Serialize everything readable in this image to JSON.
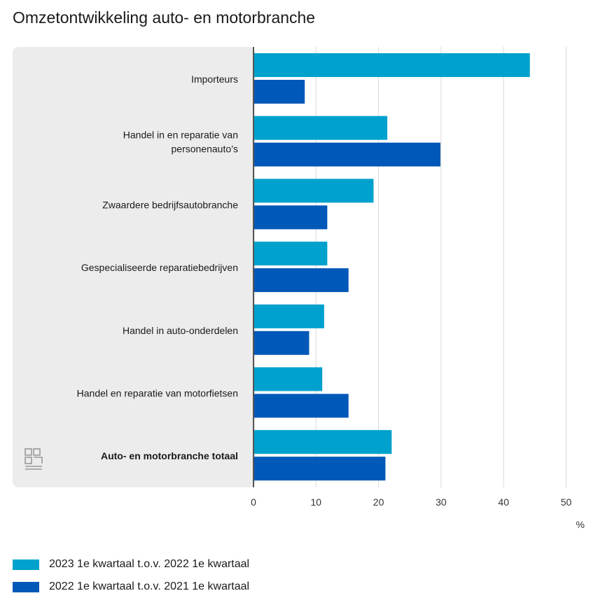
{
  "chart_data": {
    "type": "bar",
    "orientation": "horizontal",
    "title": "Omzetontwikkeling auto- en motorbranche",
    "categories": [
      [
        "Importeurs"
      ],
      [
        "Handel in en reparatie van",
        "personenauto’s"
      ],
      [
        "Zwaardere bedrijfsautobranche"
      ],
      [
        "Gespecialiseerde reparatiebedrijven"
      ],
      [
        "Handel in auto-onderdelen"
      ],
      [
        "Handel en reparatie van motorfietsen"
      ],
      [
        "Auto- en motorbranche totaal"
      ]
    ],
    "bold_categories": [
      6
    ],
    "series": [
      {
        "name": "2023 1e kwartaal t.o.v. 2022 1e kwartaal",
        "color": "#00a1cd",
        "values": [
          44.2,
          21.4,
          19.2,
          11.8,
          11.3,
          11.0,
          22.1
        ]
      },
      {
        "name": "2022 1e kwartaal t.o.v. 2021 1e kwartaal",
        "color": "#0058b8",
        "values": [
          8.2,
          29.9,
          11.8,
          15.2,
          8.9,
          15.2,
          21.1
        ]
      }
    ],
    "xlim": [
      0,
      50
    ],
    "xticks": [
      "0",
      "10",
      "20",
      "30",
      "40",
      "50"
    ],
    "xlabel": "%",
    "grid": true
  },
  "logo": {
    "name": "cbs"
  }
}
